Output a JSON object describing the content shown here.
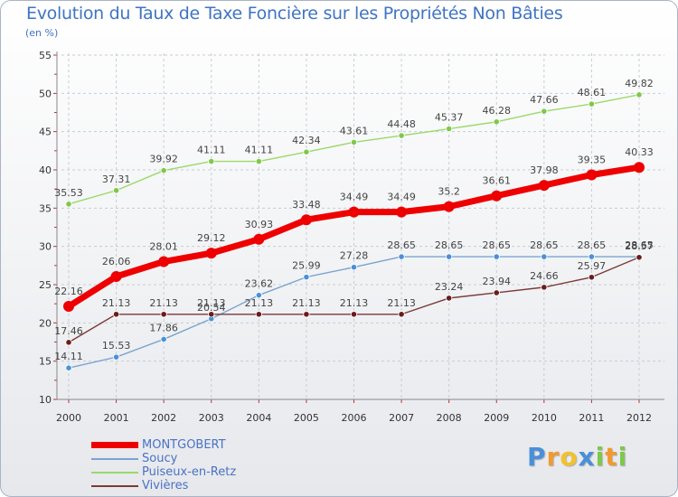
{
  "chart_data": {
    "type": "line",
    "title": "Evolution du Taux de Taxe Foncière sur les Propriétés Non Bâties",
    "subtitle": "(en %)",
    "categories": [
      "2000",
      "2001",
      "2002",
      "2003",
      "2004",
      "2005",
      "2006",
      "2007",
      "2008",
      "2009",
      "2010",
      "2011",
      "2012"
    ],
    "ylim": [
      10,
      55
    ],
    "yticks": [
      10,
      15,
      20,
      25,
      30,
      35,
      40,
      45,
      50,
      55
    ],
    "grid": true,
    "legend_position": "bottom-left",
    "series": [
      {
        "name": "Puiseux-en-Retz",
        "color": "#9ad96a",
        "point_color": "#7ec84a",
        "values": [
          35.53,
          37.31,
          39.92,
          41.11,
          41.11,
          42.34,
          43.61,
          44.48,
          45.37,
          46.28,
          47.66,
          48.61,
          49.82
        ],
        "labels": [
          "35.53",
          "37.31",
          "39.92",
          "41.11",
          "41.11",
          "42.34",
          "43.61",
          "44.48",
          "45.37",
          "46.28",
          "47.66",
          "48.61",
          "49.82"
        ]
      },
      {
        "name": "Soucy",
        "color": "#7ba3d0",
        "point_color": "#4a90d9",
        "values": [
          14.11,
          15.53,
          17.86,
          20.54,
          23.62,
          25.99,
          27.28,
          28.65,
          28.65,
          28.65,
          28.65,
          28.65,
          28.65
        ],
        "labels": [
          "14.11",
          "15.53",
          "17.86",
          "20.54",
          "23.62",
          "25.99",
          "27.28",
          "28.65",
          "28.65",
          "28.65",
          "28.65",
          "28.65",
          "28.65"
        ]
      },
      {
        "name": "Vivières",
        "color": "#7a3a3a",
        "point_color": "#6b1c1c",
        "values": [
          17.46,
          21.13,
          21.13,
          21.13,
          21.13,
          21.13,
          21.13,
          21.13,
          23.24,
          23.94,
          24.66,
          25.97,
          28.57
        ],
        "labels": [
          "17.46",
          "21.13",
          "21.13",
          "21.13",
          "21.13",
          "21.13",
          "21.13",
          "21.13",
          "23.24",
          "23.94",
          "24.66",
          "25.97",
          "28.57"
        ]
      },
      {
        "name": "MONTGOBERT",
        "color": "#ee0000",
        "point_color": "#ee0000",
        "values": [
          22.16,
          26.06,
          28.01,
          29.12,
          30.93,
          33.48,
          34.49,
          34.49,
          35.2,
          36.61,
          37.98,
          39.35,
          40.33
        ],
        "labels": [
          "22.16",
          "26.06",
          "28.01",
          "29.12",
          "30.93",
          "33.48",
          "34.49",
          "34.49",
          "35.2",
          "36.61",
          "37.98",
          "39.35",
          "40.33"
        ]
      }
    ],
    "legend": [
      {
        "name": "MONTGOBERT",
        "color": "#ee0000"
      },
      {
        "name": "Soucy",
        "color": "#7ba3d0"
      },
      {
        "name": "Puiseux-en-Retz",
        "color": "#9ad96a"
      },
      {
        "name": "Vivières",
        "color": "#7a3a3a"
      }
    ]
  },
  "brand": {
    "name": "Proxiti",
    "letters": [
      {
        "ch": "P",
        "color": "#4a8fd8"
      },
      {
        "ch": "r",
        "color": "#f29a2e"
      },
      {
        "ch": "o",
        "color": "#f2c12e"
      },
      {
        "ch": "x",
        "color": "#4a8fd8"
      },
      {
        "ch": "i",
        "color": "#7ec84a"
      },
      {
        "ch": "t",
        "color": "#f29a2e"
      },
      {
        "ch": "i",
        "color": "#7ec84a"
      }
    ]
  }
}
